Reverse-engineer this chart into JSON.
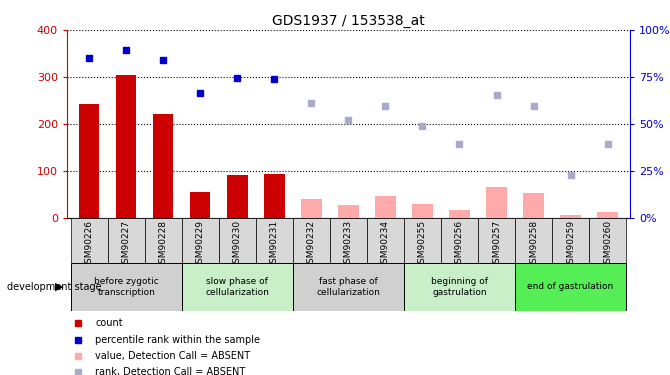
{
  "title": "GDS1937 / 153538_at",
  "samples": [
    "GSM90226",
    "GSM90227",
    "GSM90228",
    "GSM90229",
    "GSM90230",
    "GSM90231",
    "GSM90232",
    "GSM90233",
    "GSM90234",
    "GSM90255",
    "GSM90256",
    "GSM90257",
    "GSM90258",
    "GSM90259",
    "GSM90260"
  ],
  "count_values": [
    242,
    305,
    220,
    55,
    90,
    92,
    null,
    null,
    null,
    null,
    null,
    null,
    null,
    null,
    null
  ],
  "count_absent": [
    null,
    null,
    null,
    null,
    null,
    null,
    40,
    27,
    45,
    28,
    15,
    65,
    52,
    5,
    12
  ],
  "rank_values_left": [
    340,
    358,
    335,
    265,
    297,
    296,
    245,
    207,
    237,
    195,
    157,
    262,
    238,
    90,
    157
  ],
  "rank_absent_flag": [
    false,
    false,
    false,
    false,
    false,
    false,
    true,
    true,
    true,
    true,
    true,
    true,
    true,
    true,
    true
  ],
  "stages": [
    {
      "label": "before zygotic\ntranscription",
      "start": 0,
      "end": 2,
      "color": "#d0d0d0"
    },
    {
      "label": "slow phase of\ncellularization",
      "start": 3,
      "end": 5,
      "color": "#c8efc8"
    },
    {
      "label": "fast phase of\ncellularization",
      "start": 6,
      "end": 8,
      "color": "#d0d0d0"
    },
    {
      "label": "beginning of\ngastrulation",
      "start": 9,
      "end": 11,
      "color": "#c8efc8"
    },
    {
      "label": "end of gastrulation",
      "start": 12,
      "end": 14,
      "color": "#55ee55"
    }
  ],
  "ylim_left": [
    0,
    400
  ],
  "yticks_left": [
    0,
    100,
    200,
    300,
    400
  ],
  "yticks_right_labels": [
    "0%",
    "25%",
    "50%",
    "75%",
    "100%"
  ],
  "yticks_right_positions": [
    0,
    100,
    200,
    300,
    400
  ],
  "color_count": "#cc0000",
  "color_count_absent": "#ffaaaa",
  "color_rank": "#0000cc",
  "color_rank_absent": "#aaaacc",
  "legend_items": [
    {
      "color": "#cc0000",
      "label": "count"
    },
    {
      "color": "#0000cc",
      "label": "percentile rank within the sample"
    },
    {
      "color": "#ffaaaa",
      "label": "value, Detection Call = ABSENT"
    },
    {
      "color": "#aaaacc",
      "label": "rank, Detection Call = ABSENT"
    }
  ]
}
